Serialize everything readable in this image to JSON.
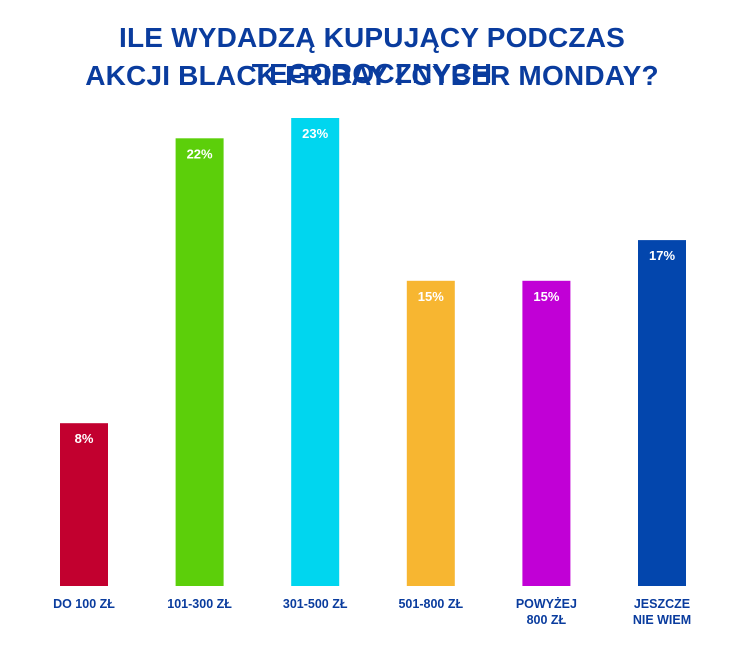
{
  "title": {
    "line1": "ILE WYDADZĄ KUPUJĄCY PODCZAS TEGOROCZNYCH",
    "line2": "AKCJI BLACK FRIDAY I CYBER MONDAY?"
  },
  "chart_data": {
    "type": "bar",
    "title": "ILE WYDADZĄ KUPUJĄCY PODCZAS TEGOROCZNYCH AKCJI BLACK FRIDAY I CYBER MONDAY?",
    "categories": [
      [
        "DO 100 ZŁ"
      ],
      [
        "101-300 ZŁ"
      ],
      [
        "301-500 ZŁ"
      ],
      [
        "501-800 ZŁ"
      ],
      [
        "POWYŻEJ",
        "800 ZŁ"
      ],
      [
        "JESZCZE",
        "NIE WIEM"
      ]
    ],
    "values": [
      8,
      22,
      23,
      15,
      15,
      17
    ],
    "value_labels": [
      "8%",
      "22%",
      "23%",
      "15%",
      "15%",
      "17%"
    ],
    "colors": [
      "#c2002f",
      "#5ccf0a",
      "#00d6ef",
      "#f7b631",
      "#c100d6",
      "#0346ad"
    ],
    "ylim": [
      0,
      23
    ],
    "grid": false,
    "xlabel": "",
    "ylabel": ""
  }
}
